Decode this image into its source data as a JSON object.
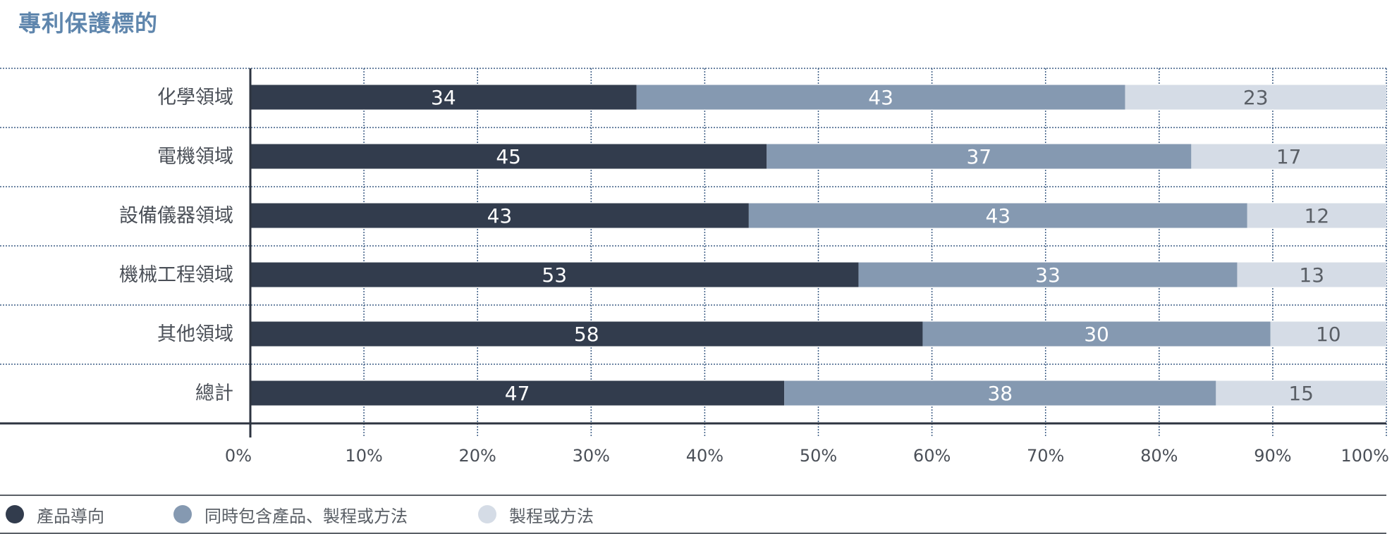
{
  "chart_data": {
    "type": "bar",
    "orientation": "horizontal",
    "stacked": true,
    "title": "專利保護標的",
    "categories": [
      "化學領域",
      "電機領域",
      "設備儀器領域",
      "機械工程領域",
      "其他領域",
      "總計"
    ],
    "series": [
      {
        "name": "產品導向",
        "color": "#323c4d",
        "label_color": "#ffffff",
        "values": [
          34,
          45,
          43,
          53,
          58,
          47
        ]
      },
      {
        "name": "同時包含產品、製程或方法",
        "color": "#8599b1",
        "label_color": "#ffffff",
        "values": [
          43,
          37,
          43,
          33,
          30,
          38
        ]
      },
      {
        "name": "製程或方法",
        "color": "#d5dce6",
        "label_color": "#5a5f66",
        "values": [
          23,
          17,
          12,
          13,
          10,
          15
        ]
      }
    ],
    "xlim": [
      0,
      100
    ],
    "x_ticks": [
      "0%",
      "10%",
      "20%",
      "30%",
      "40%",
      "50%",
      "60%",
      "70%",
      "80%",
      "90%",
      "100%"
    ],
    "grid": true,
    "legend_position": "bottom-left"
  }
}
